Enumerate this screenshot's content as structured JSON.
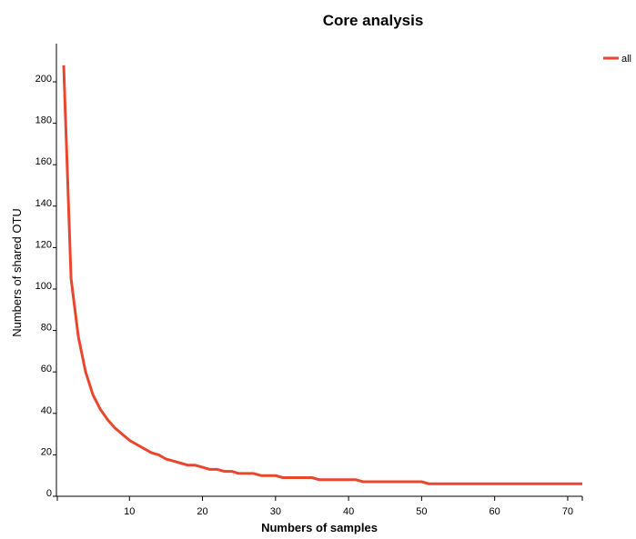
{
  "chart_data": {
    "type": "line",
    "title": "Core analysis",
    "xlabel": "Numbers of samples",
    "ylabel": "Numbers of shared OTU",
    "xlim": [
      0,
      72
    ],
    "ylim": [
      0,
      220
    ],
    "xticks": [
      10,
      20,
      30,
      40,
      50,
      60,
      70
    ],
    "yticks": [
      0,
      20,
      40,
      60,
      80,
      100,
      120,
      140,
      160,
      180,
      200
    ],
    "grid": false,
    "legend_position": "top-right",
    "series": [
      {
        "name": "all",
        "color": "#e8472e",
        "x": [
          1,
          2,
          3,
          4,
          5,
          6,
          7,
          8,
          9,
          10,
          11,
          12,
          13,
          14,
          15,
          16,
          17,
          18,
          19,
          20,
          21,
          22,
          23,
          24,
          25,
          26,
          27,
          28,
          29,
          30,
          31,
          32,
          33,
          34,
          35,
          36,
          37,
          38,
          39,
          40,
          41,
          42,
          43,
          44,
          45,
          46,
          47,
          48,
          49,
          50,
          51,
          52,
          53,
          54,
          55,
          56,
          57,
          58,
          59,
          60,
          61,
          62,
          63,
          64,
          65,
          66,
          67,
          68,
          69,
          70,
          71,
          72
        ],
        "values": [
          208,
          105,
          77,
          60,
          49,
          42,
          37,
          33,
          30,
          27,
          25,
          23,
          21,
          20,
          18,
          17,
          16,
          15,
          15,
          14,
          13,
          13,
          12,
          12,
          11,
          11,
          11,
          10,
          10,
          10,
          9,
          9,
          9,
          9,
          9,
          8,
          8,
          8,
          8,
          8,
          8,
          7,
          7,
          7,
          7,
          7,
          7,
          7,
          7,
          7,
          6,
          6,
          6,
          6,
          6,
          6,
          6,
          6,
          6,
          6,
          6,
          6,
          6,
          6,
          6,
          6,
          6,
          6,
          6,
          6,
          6,
          6
        ]
      }
    ]
  }
}
